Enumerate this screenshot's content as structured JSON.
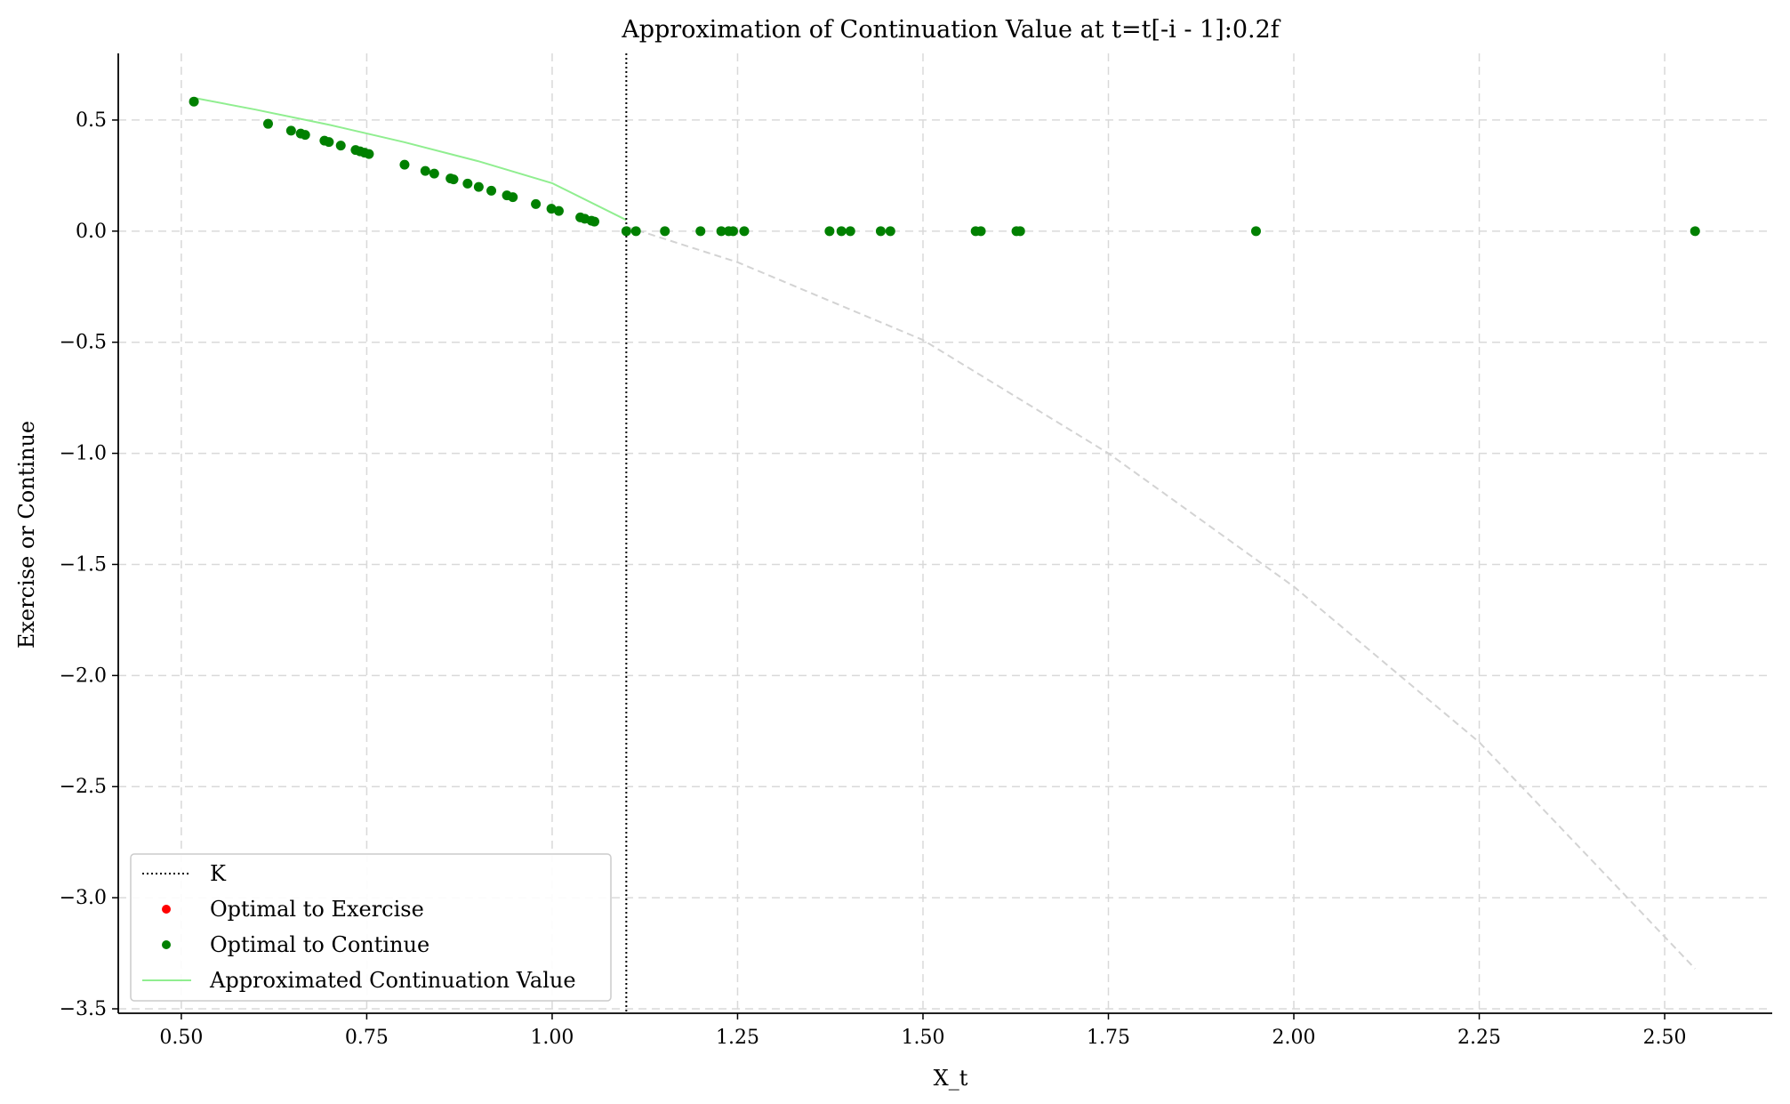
{
  "chart_data": {
    "type": "scatter",
    "title": "Approximation of Continuation Value at t=t[-i - 1]:0.2f",
    "xlabel": "X_t",
    "ylabel": "Exercise or Continue",
    "xlim": [
      0.415,
      2.645
    ],
    "ylim": [
      -3.52,
      0.8
    ],
    "grid": true,
    "x_ticks": [
      0.5,
      0.75,
      1.0,
      1.25,
      1.5,
      1.75,
      2.0,
      2.25,
      2.5
    ],
    "x_tick_labels": [
      "0.50",
      "0.75",
      "1.00",
      "1.25",
      "1.50",
      "1.75",
      "2.00",
      "2.25",
      "2.50"
    ],
    "y_ticks": [
      0.5,
      0.0,
      -0.5,
      -1.0,
      -1.5,
      -2.0,
      -2.5,
      -3.0,
      -3.5
    ],
    "y_tick_labels": [
      "0.5",
      "0.0",
      "−0.5",
      "−1.0",
      "−1.5",
      "−2.0",
      "−2.5",
      "−3.0",
      "−3.5"
    ],
    "strike_K": 1.1,
    "legend_position": "lower-left",
    "legend": [
      {
        "label": "K",
        "style": "dotted-line",
        "color": "#000000"
      },
      {
        "label": "Optimal to Exercise",
        "style": "dot",
        "color": "#ff0000"
      },
      {
        "label": "Optimal to Continue",
        "style": "dot",
        "color": "#008000"
      },
      {
        "label": "Approximated Continuation Value",
        "style": "line",
        "color": "#90ee90"
      }
    ],
    "series": [
      {
        "name": "Optimal to Exercise",
        "color": "#ff0000",
        "points": []
      },
      {
        "name": "Optimal to Continue",
        "color": "#008000",
        "points": [
          [
            0.517,
            0.583
          ],
          [
            0.617,
            0.483
          ],
          [
            0.648,
            0.452
          ],
          [
            0.661,
            0.439
          ],
          [
            0.667,
            0.433
          ],
          [
            0.693,
            0.407
          ],
          [
            0.699,
            0.401
          ],
          [
            0.715,
            0.385
          ],
          [
            0.735,
            0.365
          ],
          [
            0.741,
            0.359
          ],
          [
            0.747,
            0.353
          ],
          [
            0.753,
            0.347
          ],
          [
            0.801,
            0.299
          ],
          [
            0.829,
            0.271
          ],
          [
            0.841,
            0.259
          ],
          [
            0.863,
            0.237
          ],
          [
            0.867,
            0.233
          ],
          [
            0.886,
            0.214
          ],
          [
            0.901,
            0.199
          ],
          [
            0.918,
            0.182
          ],
          [
            0.939,
            0.161
          ],
          [
            0.947,
            0.153
          ],
          [
            0.978,
            0.122
          ],
          [
            0.999,
            0.101
          ],
          [
            1.009,
            0.091
          ],
          [
            1.038,
            0.062
          ],
          [
            1.044,
            0.056
          ],
          [
            1.053,
            0.047
          ],
          [
            1.057,
            0.043
          ],
          [
            1.1,
            0.0
          ],
          [
            1.113,
            0.0
          ],
          [
            1.152,
            0.0
          ],
          [
            1.2,
            0.0
          ],
          [
            1.228,
            0.0
          ],
          [
            1.238,
            0.0
          ],
          [
            1.244,
            0.0
          ],
          [
            1.259,
            0.0
          ],
          [
            1.374,
            0.0
          ],
          [
            1.39,
            0.0
          ],
          [
            1.402,
            0.0
          ],
          [
            1.443,
            0.0
          ],
          [
            1.456,
            0.0
          ],
          [
            1.571,
            0.0
          ],
          [
            1.578,
            0.0
          ],
          [
            1.626,
            0.0
          ],
          [
            1.631,
            0.0
          ],
          [
            1.949,
            0.0
          ],
          [
            2.541,
            0.0
          ]
        ]
      },
      {
        "name": "Approximated Continuation Value",
        "color": "#90ee90",
        "line": [
          [
            0.517,
            0.6
          ],
          [
            0.6,
            0.547
          ],
          [
            0.7,
            0.478
          ],
          [
            0.8,
            0.401
          ],
          [
            0.9,
            0.315
          ],
          [
            1.0,
            0.216
          ],
          [
            1.1,
            0.05
          ]
        ]
      },
      {
        "name": "Continuation fit (extrapolated)",
        "color": "#d3d3d3",
        "line": [
          [
            1.1,
            0.02
          ],
          [
            1.25,
            -0.14
          ],
          [
            1.5,
            -0.49
          ],
          [
            1.75,
            -1.0
          ],
          [
            2.0,
            -1.6
          ],
          [
            2.25,
            -2.3
          ],
          [
            2.541,
            -3.32
          ]
        ]
      }
    ]
  }
}
